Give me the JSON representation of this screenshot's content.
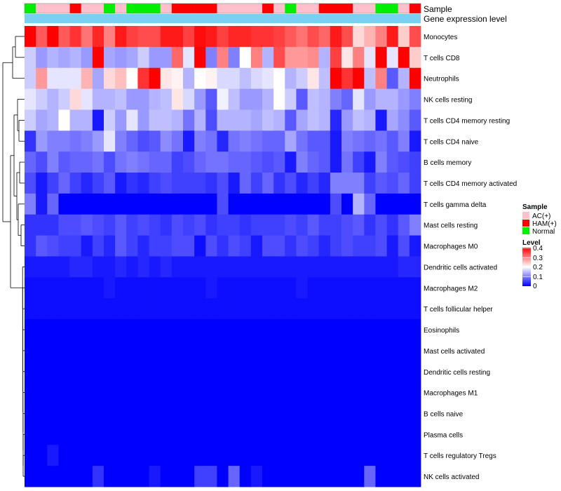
{
  "chart_data": {
    "type": "heatmap",
    "title": "",
    "annotation_tracks": [
      {
        "name": "Sample"
      },
      {
        "name": "Gene expression level"
      }
    ],
    "annotation_colors": {
      "Sample": {
        "AC(+)": "#ffc0cb",
        "HAM(+)": "#ff0000",
        "Normal": "#00ee00"
      },
      "Gene expression level": "#7ad0f0"
    },
    "legend_sample": {
      "title": "Sample",
      "items": [
        {
          "label": "AC(+)",
          "color": "#ffc0cb"
        },
        {
          "label": "HAM(+)",
          "color": "#ff0000"
        },
        {
          "label": "Normal",
          "color": "#00ee00"
        }
      ]
    },
    "legend_level": {
      "title": "Level",
      "ticks": [
        "0.4",
        "0.3",
        "0.2",
        "0.1",
        "0"
      ],
      "range": [
        0,
        0.4
      ],
      "colors": [
        "#0000ff",
        "#ffffff",
        "#ff0000"
      ]
    },
    "sample_groups": [
      "Normal",
      "AC(+)",
      "AC(+)",
      "AC(+)",
      "HAM(+)",
      "AC(+)",
      "AC(+)",
      "Normal",
      "AC(+)",
      "Normal",
      "Normal",
      "Normal",
      "AC(+)",
      "HAM(+)",
      "HAM(+)",
      "HAM(+)",
      "HAM(+)",
      "AC(+)",
      "AC(+)",
      "AC(+)",
      "AC(+)",
      "HAM(+)",
      "AC(+)",
      "Normal",
      "AC(+)",
      "AC(+)",
      "HAM(+)",
      "HAM(+)",
      "HAM(+)",
      "AC(+)",
      "AC(+)",
      "Normal",
      "Normal",
      "AC(+)",
      "HAM(+)"
    ],
    "rows": [
      {
        "label": "Monocytes",
        "values": [
          0.4,
          0.33,
          0.4,
          0.33,
          0.36,
          0.31,
          0.37,
          0.3,
          0.38,
          0.35,
          0.34,
          0.34,
          0.38,
          0.38,
          0.35,
          0.39,
          0.38,
          0.35,
          0.37,
          0.37,
          0.36,
          0.36,
          0.35,
          0.33,
          0.31,
          0.34,
          0.32,
          0.38,
          0.34,
          0.23,
          0.26,
          0.3,
          0.38,
          0.24,
          0.34
        ]
      },
      {
        "label": "T cells CD8",
        "values": [
          0.16,
          0.12,
          0.14,
          0.13,
          0.14,
          0.12,
          0.4,
          0.13,
          0.12,
          0.13,
          0.16,
          0.12,
          0.12,
          0.32,
          0.18,
          0.4,
          0.1,
          0.3,
          0.1,
          0.2,
          0.3,
          0.14,
          0.34,
          0.28,
          0.28,
          0.29,
          0.14,
          0.35,
          0.22,
          0.3,
          0.18,
          0.4,
          0.18,
          0.4,
          0.24
        ]
      },
      {
        "label": "Neutrophils",
        "values": [
          0.16,
          0.28,
          0.18,
          0.18,
          0.18,
          0.26,
          0.13,
          0.23,
          0.25,
          0.2,
          0.36,
          0.4,
          0.22,
          0.21,
          0.14,
          0.2,
          0.21,
          0.17,
          0.17,
          0.15,
          0.17,
          0.18,
          0.2,
          0.14,
          0.16,
          0.22,
          0.15,
          0.4,
          0.36,
          0.4,
          0.15,
          0.3,
          0.07,
          0.14,
          0.4
        ]
      },
      {
        "label": "NK cells resting",
        "values": [
          0.18,
          0.16,
          0.14,
          0.16,
          0.23,
          0.18,
          0.14,
          0.14,
          0.15,
          0.12,
          0.12,
          0.14,
          0.15,
          0.22,
          0.17,
          0.12,
          0.07,
          0.19,
          0.15,
          0.12,
          0.12,
          0.14,
          0.2,
          0.16,
          0.07,
          0.15,
          0.14,
          0.1,
          0.08,
          0.18,
          0.12,
          0.14,
          0.14,
          0.12,
          0.1
        ]
      },
      {
        "label": "T cells CD4 memory resting",
        "values": [
          0.16,
          0.13,
          0.14,
          0.2,
          0.14,
          0.14,
          0.02,
          0.16,
          0.12,
          0.18,
          0.12,
          0.15,
          0.15,
          0.14,
          0.09,
          0.14,
          0.06,
          0.14,
          0.14,
          0.14,
          0.13,
          0.15,
          0.14,
          0.07,
          0.13,
          0.15,
          0.14,
          0.03,
          0.12,
          0.15,
          0.14,
          0.02,
          0.13,
          0.11,
          0.07
        ]
      },
      {
        "label": "T cells CD4 naive",
        "values": [
          0.04,
          0.12,
          0.1,
          0.1,
          0.09,
          0.1,
          0.12,
          0.18,
          0.1,
          0.08,
          0.06,
          0.07,
          0.11,
          0.09,
          0.02,
          0.1,
          0.09,
          0.03,
          0.09,
          0.1,
          0.09,
          0.08,
          0.08,
          0.13,
          0.09,
          0.07,
          0.07,
          0.02,
          0.1,
          0.09,
          0.08,
          0.09,
          0.07,
          0.1,
          0.02
        ]
      },
      {
        "label": "B cells memory",
        "values": [
          0.08,
          0.06,
          0.1,
          0.07,
          0.08,
          0.08,
          0.09,
          0.06,
          0.09,
          0.1,
          0.09,
          0.08,
          0.08,
          0.05,
          0.06,
          0.08,
          0.09,
          0.09,
          0.08,
          0.08,
          0.07,
          0.06,
          0.07,
          0.02,
          0.1,
          0.08,
          0.07,
          0.02,
          0.09,
          0.05,
          0.02,
          0.1,
          0.07,
          0.06,
          0.05
        ]
      },
      {
        "label": "T cells CD4 memory activated",
        "values": [
          0.06,
          0.02,
          0.05,
          0.08,
          0.05,
          0.03,
          0.05,
          0.07,
          0.02,
          0.04,
          0.03,
          0.05,
          0.06,
          0.05,
          0.05,
          0.05,
          0.04,
          0.06,
          0.02,
          0.08,
          0.05,
          0.08,
          0.04,
          0.06,
          0.03,
          0.05,
          0.03,
          0.1,
          0.1,
          0.1,
          0.05,
          0.07,
          0.06,
          0.08,
          0.05
        ]
      },
      {
        "label": "T cells gamma delta",
        "values": [
          0.1,
          0.02,
          0.08,
          0.0,
          0.0,
          0.0,
          0.0,
          0.0,
          0.0,
          0.0,
          0.0,
          0.0,
          0.0,
          0.0,
          0.0,
          0.0,
          0.0,
          0.06,
          0.0,
          0.0,
          0.0,
          0.0,
          0.0,
          0.0,
          0.0,
          0.0,
          0.0,
          0.06,
          0.0,
          0.14,
          0.08,
          0.0,
          0.0,
          0.0,
          0.0
        ]
      },
      {
        "label": "Mast cells resting",
        "values": [
          0.04,
          0.04,
          0.04,
          0.06,
          0.06,
          0.07,
          0.06,
          0.05,
          0.07,
          0.05,
          0.06,
          0.05,
          0.04,
          0.06,
          0.05,
          0.06,
          0.04,
          0.05,
          0.05,
          0.04,
          0.05,
          0.05,
          0.05,
          0.06,
          0.05,
          0.07,
          0.05,
          0.05,
          0.06,
          0.07,
          0.04,
          0.06,
          0.04,
          0.07,
          0.1
        ]
      },
      {
        "label": "Macrophages M0",
        "values": [
          0.04,
          0.07,
          0.06,
          0.05,
          0.05,
          0.02,
          0.05,
          0.03,
          0.07,
          0.05,
          0.03,
          0.05,
          0.05,
          0.06,
          0.06,
          0.01,
          0.06,
          0.04,
          0.06,
          0.05,
          0.02,
          0.06,
          0.06,
          0.04,
          0.06,
          0.05,
          0.03,
          0.05,
          0.06,
          0.05,
          0.05,
          0.06,
          0.02,
          0.06,
          0.02
        ]
      },
      {
        "label": "Dendritic cells activated",
        "values": [
          0.02,
          0.02,
          0.02,
          0.02,
          0.03,
          0.03,
          0.02,
          0.02,
          0.03,
          0.02,
          0.03,
          0.02,
          0.03,
          0.02,
          0.02,
          0.02,
          0.02,
          0.02,
          0.02,
          0.02,
          0.02,
          0.02,
          0.02,
          0.02,
          0.02,
          0.02,
          0.02,
          0.02,
          0.02,
          0.02,
          0.02,
          0.02,
          0.02,
          0.03,
          0.03
        ]
      },
      {
        "label": "Macrophages M2",
        "values": [
          0.01,
          0.01,
          0.01,
          0.01,
          0.01,
          0.01,
          0.01,
          0.02,
          0.01,
          0.01,
          0.01,
          0.01,
          0.01,
          0.01,
          0.01,
          0.01,
          0.02,
          0.01,
          0.01,
          0.01,
          0.01,
          0.01,
          0.01,
          0.01,
          0.02,
          0.01,
          0.01,
          0.01,
          0.01,
          0.01,
          0.01,
          0.01,
          0.01,
          0.01,
          0.01
        ]
      },
      {
        "label": "T cells follicular helper",
        "values": [
          0.01,
          0.01,
          0.01,
          0.01,
          0.01,
          0.01,
          0.01,
          0.01,
          0.01,
          0.01,
          0.01,
          0.01,
          0.01,
          0.01,
          0.01,
          0.01,
          0.01,
          0.01,
          0.01,
          0.01,
          0.01,
          0.01,
          0.01,
          0.01,
          0.01,
          0.01,
          0.01,
          0.01,
          0.01,
          0.01,
          0.01,
          0.01,
          0.01,
          0.01,
          0.01
        ]
      },
      {
        "label": "Eosinophils",
        "values": [
          0.0,
          0.0,
          0.0,
          0.0,
          0.0,
          0.0,
          0.0,
          0.0,
          0.0,
          0.0,
          0.0,
          0.0,
          0.0,
          0.0,
          0.0,
          0.0,
          0.0,
          0.0,
          0.0,
          0.0,
          0.0,
          0.0,
          0.0,
          0.0,
          0.0,
          0.0,
          0.0,
          0.0,
          0.0,
          0.0,
          0.0,
          0.0,
          0.0,
          0.0,
          0.0
        ]
      },
      {
        "label": "Mast cells activated",
        "values": [
          0.0,
          0.0,
          0.0,
          0.0,
          0.0,
          0.0,
          0.0,
          0.0,
          0.0,
          0.0,
          0.0,
          0.0,
          0.0,
          0.0,
          0.0,
          0.0,
          0.0,
          0.0,
          0.0,
          0.0,
          0.0,
          0.0,
          0.0,
          0.0,
          0.0,
          0.0,
          0.0,
          0.0,
          0.0,
          0.0,
          0.0,
          0.0,
          0.0,
          0.0,
          0.0
        ]
      },
      {
        "label": "Dendritic cells resting",
        "values": [
          0.0,
          0.0,
          0.0,
          0.0,
          0.0,
          0.0,
          0.0,
          0.0,
          0.0,
          0.0,
          0.0,
          0.0,
          0.0,
          0.0,
          0.0,
          0.0,
          0.0,
          0.0,
          0.0,
          0.0,
          0.0,
          0.0,
          0.0,
          0.0,
          0.0,
          0.0,
          0.0,
          0.0,
          0.0,
          0.0,
          0.0,
          0.0,
          0.0,
          0.0,
          0.0
        ]
      },
      {
        "label": "Macrophages M1",
        "values": [
          0.0,
          0.0,
          0.0,
          0.0,
          0.0,
          0.0,
          0.0,
          0.0,
          0.0,
          0.0,
          0.0,
          0.0,
          0.0,
          0.0,
          0.0,
          0.0,
          0.0,
          0.0,
          0.0,
          0.0,
          0.0,
          0.0,
          0.0,
          0.0,
          0.0,
          0.0,
          0.0,
          0.0,
          0.0,
          0.0,
          0.0,
          0.0,
          0.0,
          0.0,
          0.0
        ]
      },
      {
        "label": "B cells naive",
        "values": [
          0.0,
          0.0,
          0.0,
          0.0,
          0.0,
          0.0,
          0.0,
          0.0,
          0.0,
          0.0,
          0.0,
          0.0,
          0.0,
          0.0,
          0.0,
          0.0,
          0.0,
          0.0,
          0.0,
          0.0,
          0.0,
          0.0,
          0.0,
          0.0,
          0.0,
          0.0,
          0.0,
          0.0,
          0.0,
          0.0,
          0.0,
          0.0,
          0.0,
          0.0,
          0.0
        ]
      },
      {
        "label": "Plasma cells",
        "values": [
          0.0,
          0.0,
          0.0,
          0.0,
          0.0,
          0.0,
          0.0,
          0.0,
          0.0,
          0.0,
          0.0,
          0.0,
          0.0,
          0.0,
          0.0,
          0.0,
          0.0,
          0.0,
          0.0,
          0.0,
          0.0,
          0.0,
          0.0,
          0.0,
          0.0,
          0.0,
          0.0,
          0.0,
          0.0,
          0.0,
          0.0,
          0.0,
          0.0,
          0.0,
          0.0
        ]
      },
      {
        "label": "T cells regulatory  Tregs",
        "values": [
          0.0,
          0.0,
          0.02,
          0.0,
          0.0,
          0.0,
          0.0,
          0.0,
          0.0,
          0.0,
          0.0,
          0.0,
          0.0,
          0.0,
          0.0,
          0.0,
          0.0,
          0.0,
          0.0,
          0.0,
          0.0,
          0.0,
          0.0,
          0.0,
          0.0,
          0.0,
          0.0,
          0.0,
          0.0,
          0.0,
          0.0,
          0.0,
          0.0,
          0.0,
          0.0
        ]
      },
      {
        "label": "NK cells activated",
        "values": [
          0.0,
          0.0,
          0.0,
          0.0,
          0.0,
          0.0,
          0.04,
          0.0,
          0.0,
          0.0,
          0.0,
          0.02,
          0.0,
          0.0,
          0.0,
          0.05,
          0.05,
          0.0,
          0.08,
          0.0,
          0.02,
          0.0,
          0.0,
          0.0,
          0.0,
          0.0,
          0.0,
          0.0,
          0.0,
          0.0,
          0.08,
          0.0,
          0.0,
          0.0,
          0.0
        ]
      }
    ]
  }
}
